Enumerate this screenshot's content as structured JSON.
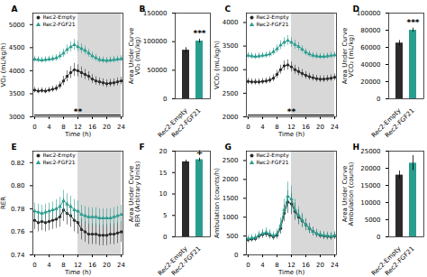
{
  "chart_data": [
    {
      "type": "line",
      "title": "A",
      "xlabel": "Time (h)",
      "ylabel": "VO₂ (mL/kg/h)",
      "x": [
        0,
        1,
        2,
        3,
        4,
        5,
        6,
        7,
        8,
        9,
        10,
        11,
        12,
        13,
        14,
        15,
        16,
        17,
        18,
        19,
        20,
        21,
        22,
        23,
        24
      ],
      "xlim": [
        -0.5,
        24.5
      ],
      "xticks": [
        0,
        4,
        8,
        12,
        16,
        20,
        24
      ],
      "ylim": [
        3000,
        5250
      ],
      "yticks": [
        3000,
        3500,
        4000,
        4500,
        5000
      ],
      "shade": {
        "from": 12,
        "to": 24,
        "color": "#d8d8d8"
      },
      "series": [
        {
          "name": "Rec2-Empty",
          "color": "#2b2b2b",
          "marker": "circle",
          "values": [
            3580,
            3560,
            3570,
            3560,
            3580,
            3600,
            3620,
            3680,
            3780,
            3880,
            3960,
            4020,
            4000,
            3960,
            3920,
            3880,
            3820,
            3780,
            3760,
            3740,
            3720,
            3730,
            3740,
            3760,
            3780
          ],
          "errors": [
            60,
            60,
            60,
            60,
            60,
            65,
            70,
            80,
            100,
            120,
            130,
            140,
            130,
            120,
            110,
            100,
            95,
            90,
            85,
            85,
            85,
            85,
            85,
            85,
            85
          ]
        },
        {
          "name": "Rec2-FGF21",
          "color": "#2a9d8f",
          "marker": "triangle",
          "values": [
            4250,
            4240,
            4230,
            4240,
            4250,
            4260,
            4280,
            4320,
            4380,
            4460,
            4520,
            4560,
            4520,
            4480,
            4440,
            4380,
            4320,
            4280,
            4240,
            4230,
            4220,
            4230,
            4240,
            4250,
            4260
          ],
          "errors": [
            65,
            65,
            65,
            65,
            65,
            65,
            70,
            80,
            90,
            100,
            110,
            120,
            115,
            105,
            95,
            85,
            80,
            75,
            70,
            70,
            70,
            70,
            70,
            70,
            70
          ]
        }
      ],
      "annotation": {
        "text": "**",
        "x": 12,
        "x_from": 0,
        "x_to": 24
      },
      "legend": "upper left"
    },
    {
      "type": "bar",
      "title": "B",
      "ylabel": "Area Under Curve\nVO₂ (mL/kg)",
      "categories": [
        "Rec2-Empty",
        "Rec2-FGF21"
      ],
      "values": [
        85000,
        101000
      ],
      "errors": [
        4500,
        3500
      ],
      "colors": [
        "#2b2b2b",
        "#2a9d8f"
      ],
      "ylim": [
        0,
        150000
      ],
      "yticks": [
        0,
        50000,
        100000,
        150000
      ],
      "annotation": {
        "text": "***",
        "category": "Rec2-FGF21"
      }
    },
    {
      "type": "line",
      "title": "C",
      "xlabel": "Time (h)",
      "ylabel": "VCO₂ (mL/kg/h)",
      "x": [
        0,
        1,
        2,
        3,
        4,
        5,
        6,
        7,
        8,
        9,
        10,
        11,
        12,
        13,
        14,
        15,
        16,
        17,
        18,
        19,
        20,
        21,
        22,
        23,
        24
      ],
      "xlim": [
        -0.5,
        24.5
      ],
      "xticks": [
        0,
        4,
        8,
        12,
        16,
        20,
        24
      ],
      "ylim": [
        2000,
        4200
      ],
      "yticks": [
        2000,
        2500,
        3000,
        3500,
        4000
      ],
      "shade": {
        "from": 12,
        "to": 24,
        "color": "#d8d8d8"
      },
      "series": [
        {
          "name": "Rec2-Empty",
          "color": "#2b2b2b",
          "marker": "circle",
          "values": [
            2750,
            2740,
            2740,
            2740,
            2750,
            2760,
            2780,
            2820,
            2900,
            3000,
            3080,
            3100,
            3060,
            3000,
            2960,
            2920,
            2880,
            2850,
            2830,
            2810,
            2800,
            2800,
            2810,
            2820,
            2840
          ],
          "errors": [
            65,
            65,
            65,
            65,
            65,
            65,
            70,
            75,
            85,
            95,
            105,
            110,
            105,
            95,
            90,
            85,
            80,
            75,
            70,
            70,
            70,
            70,
            70,
            70,
            70
          ]
        },
        {
          "name": "Rec2-FGF21",
          "color": "#2a9d8f",
          "marker": "triangle",
          "values": [
            3300,
            3290,
            3280,
            3290,
            3300,
            3310,
            3330,
            3380,
            3440,
            3520,
            3580,
            3620,
            3580,
            3530,
            3490,
            3430,
            3370,
            3330,
            3300,
            3290,
            3280,
            3280,
            3290,
            3300,
            3310
          ],
          "errors": [
            65,
            65,
            65,
            65,
            65,
            65,
            70,
            75,
            85,
            95,
            100,
            105,
            100,
            95,
            90,
            80,
            75,
            70,
            65,
            65,
            65,
            65,
            65,
            65,
            65
          ]
        }
      ],
      "annotation": {
        "text": "**",
        "x": 12,
        "x_from": 0,
        "x_to": 24
      },
      "legend": "upper left"
    },
    {
      "type": "bar",
      "title": "D",
      "ylabel": "Area Under Curve\nVCO₂ (mL/kg)",
      "categories": [
        "Rec2-Empty",
        "Rec2-FGF21"
      ],
      "values": [
        65000,
        80000
      ],
      "errors": [
        3000,
        2500
      ],
      "colors": [
        "#2b2b2b",
        "#2a9d8f"
      ],
      "ylim": [
        0,
        100000
      ],
      "yticks": [
        0,
        20000,
        40000,
        60000,
        80000,
        100000
      ],
      "annotation": {
        "text": "***",
        "category": "Rec2-FGF21"
      }
    },
    {
      "type": "line",
      "title": "E",
      "xlabel": "Time (h)",
      "ylabel": "RER",
      "x": [
        0,
        1,
        2,
        3,
        4,
        5,
        6,
        7,
        8,
        9,
        10,
        11,
        12,
        13,
        14,
        15,
        16,
        17,
        18,
        19,
        20,
        21,
        22,
        23,
        24
      ],
      "xlim": [
        -0.5,
        24.5
      ],
      "xticks": [
        0,
        4,
        8,
        12,
        16,
        20,
        24
      ],
      "ylim": [
        0.74,
        0.83
      ],
      "yticks": [
        0.74,
        0.76,
        0.78,
        {
          "value": 0.8,
          "label": "0.80"
        },
        0.82
      ],
      "shade": {
        "from": 12,
        "to": 24,
        "color": "#d8d8d8"
      },
      "series": [
        {
          "name": "Rec2-Empty",
          "color": "#2b2b2b",
          "marker": "circle",
          "values": [
            0.77,
            0.768,
            0.769,
            0.768,
            0.769,
            0.77,
            0.771,
            0.773,
            0.779,
            0.776,
            0.774,
            0.77,
            0.768,
            0.762,
            0.76,
            0.758,
            0.758,
            0.758,
            0.757,
            0.757,
            0.757,
            0.758,
            0.758,
            0.759,
            0.76
          ],
          "errors": [
            0.008,
            0.008,
            0.008,
            0.008,
            0.008,
            0.008,
            0.008,
            0.009,
            0.01,
            0.01,
            0.01,
            0.01,
            0.01,
            0.009,
            0.009,
            0.009,
            0.009,
            0.009,
            0.009,
            0.009,
            0.009,
            0.009,
            0.009,
            0.009,
            0.009
          ]
        },
        {
          "name": "Rec2-FGF21",
          "color": "#2a9d8f",
          "marker": "triangle",
          "values": [
            0.778,
            0.777,
            0.776,
            0.777,
            0.778,
            0.779,
            0.78,
            0.782,
            0.787,
            0.784,
            0.782,
            0.779,
            0.778,
            0.775,
            0.774,
            0.773,
            0.773,
            0.773,
            0.772,
            0.772,
            0.772,
            0.772,
            0.773,
            0.774,
            0.775
          ],
          "errors": [
            0.007,
            0.007,
            0.007,
            0.007,
            0.007,
            0.007,
            0.008,
            0.008,
            0.009,
            0.009,
            0.009,
            0.009,
            0.009,
            0.008,
            0.008,
            0.008,
            0.008,
            0.008,
            0.008,
            0.008,
            0.008,
            0.008,
            0.008,
            0.008,
            0.008
          ]
        }
      ],
      "legend": "upper left"
    },
    {
      "type": "bar",
      "title": "F",
      "ylabel": "Area Under Curve\nRER (Arbitrary Units)",
      "categories": [
        "Rec2-Empty",
        "Rec2-FGF21"
      ],
      "values": [
        17.5,
        18.0
      ],
      "errors": [
        0.4,
        0.4
      ],
      "colors": [
        "#2b2b2b",
        "#2a9d8f"
      ],
      "ylim": [
        0,
        20
      ],
      "yticks": [
        0,
        5,
        10,
        15,
        20
      ],
      "annotation": {
        "text": "+",
        "category": "Rec2-FGF21"
      }
    },
    {
      "type": "line",
      "title": "G",
      "xlabel": "Time (h)",
      "ylabel": "Ambulation (counts/h)",
      "x": [
        0,
        1,
        2,
        3,
        4,
        5,
        6,
        7,
        8,
        9,
        10,
        11,
        12,
        13,
        14,
        15,
        16,
        17,
        18,
        19,
        20,
        21,
        22,
        23,
        24
      ],
      "xlim": [
        -0.5,
        24.5
      ],
      "xticks": [
        0,
        4,
        8,
        12,
        16,
        20,
        24
      ],
      "ylim": [
        0,
        2750
      ],
      "yticks": [
        0,
        500,
        1000,
        1500,
        2000,
        2500
      ],
      "shade": {
        "from": 12,
        "to": 24,
        "color": "#d8d8d8"
      },
      "series": [
        {
          "name": "Rec2-Empty",
          "color": "#2b2b2b",
          "marker": "circle",
          "values": [
            400,
            420,
            430,
            500,
            540,
            560,
            520,
            480,
            520,
            700,
            1100,
            1400,
            1350,
            1150,
            1000,
            900,
            800,
            700,
            620,
            560,
            520,
            500,
            490,
            480,
            500
          ],
          "errors": [
            80,
            80,
            80,
            90,
            100,
            100,
            100,
            90,
            100,
            150,
            220,
            300,
            280,
            230,
            200,
            170,
            150,
            130,
            110,
            100,
            90,
            90,
            90,
            90,
            90
          ]
        },
        {
          "name": "Rec2-FGF21",
          "color": "#2a9d8f",
          "marker": "triangle",
          "values": [
            430,
            450,
            460,
            530,
            570,
            600,
            560,
            510,
            560,
            780,
            1200,
            1550,
            1480,
            1200,
            1050,
            920,
            800,
            700,
            620,
            570,
            540,
            520,
            510,
            500,
            520
          ],
          "errors": [
            90,
            90,
            90,
            100,
            110,
            120,
            110,
            100,
            120,
            200,
            280,
            380,
            350,
            270,
            230,
            190,
            160,
            140,
            120,
            110,
            100,
            100,
            100,
            100,
            100
          ]
        }
      ],
      "legend": "upper left"
    },
    {
      "type": "bar",
      "title": "H",
      "ylabel": "Area Under Curve\nAmbulation (counts)",
      "categories": [
        "Rec2-Empty",
        "Rec2-FGF21"
      ],
      "values": [
        18000,
        21500
      ],
      "errors": [
        1200,
        2200
      ],
      "colors": [
        "#2b2b2b",
        "#2a9d8f"
      ],
      "ylim": [
        0,
        25000
      ],
      "yticks": [
        0,
        5000,
        10000,
        15000,
        20000,
        25000
      ]
    }
  ]
}
